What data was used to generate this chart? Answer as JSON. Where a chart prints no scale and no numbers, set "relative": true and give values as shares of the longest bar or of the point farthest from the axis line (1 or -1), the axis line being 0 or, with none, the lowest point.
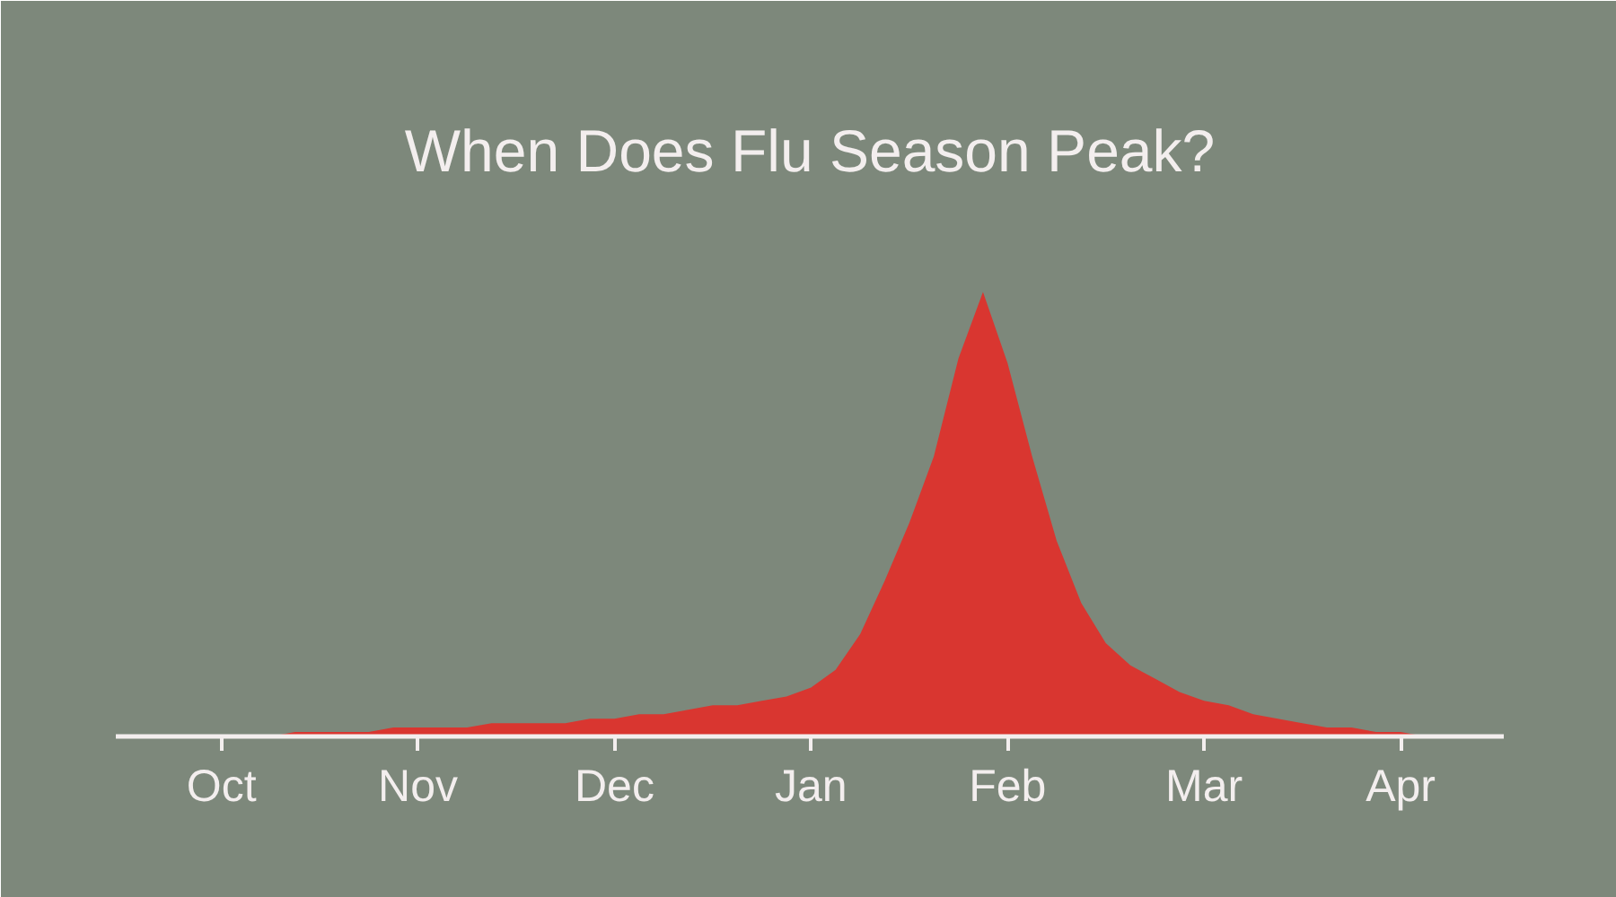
{
  "chart_data": {
    "type": "area",
    "title": "When Does Flu Season Peak?",
    "relative": true,
    "categories": [
      "Oct",
      null,
      null,
      null,
      null,
      null,
      null,
      null,
      "Nov",
      null,
      null,
      null,
      null,
      null,
      null,
      null,
      "Dec",
      null,
      null,
      null,
      null,
      null,
      null,
      null,
      "Jan",
      null,
      null,
      null,
      null,
      null,
      null,
      null,
      "Feb",
      null,
      null,
      null,
      null,
      null,
      null,
      null,
      "Mar",
      null,
      null,
      null,
      null,
      null,
      null,
      null,
      "Apr",
      null,
      null
    ],
    "values": [
      0,
      0,
      0,
      0.01,
      0.01,
      0.01,
      0.01,
      0.02,
      0.02,
      0.02,
      0.02,
      0.03,
      0.03,
      0.03,
      0.03,
      0.04,
      0.04,
      0.05,
      0.05,
      0.06,
      0.07,
      0.07,
      0.08,
      0.09,
      0.11,
      0.15,
      0.23,
      0.35,
      0.48,
      0.63,
      0.85,
      1,
      0.84,
      0.63,
      0.44,
      0.3,
      0.21,
      0.16,
      0.13,
      0.1,
      0.08,
      0.07,
      0.05,
      0.04,
      0.03,
      0.02,
      0.02,
      0.01,
      0.01,
      0,
      0
    ],
    "color": "#d93630"
  }
}
